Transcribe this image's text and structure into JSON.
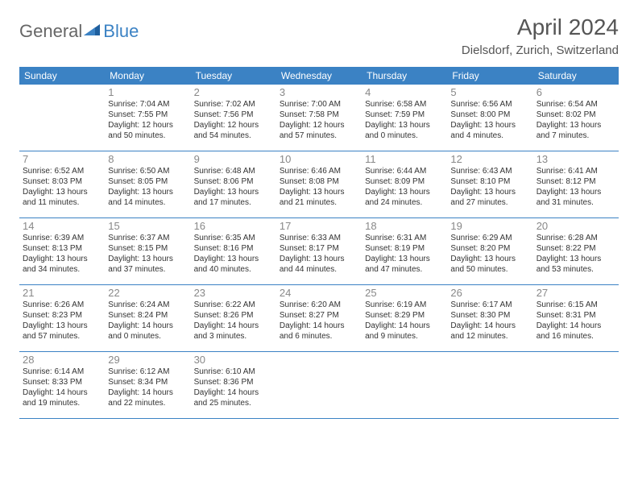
{
  "brand": {
    "first": "General",
    "second": "Blue"
  },
  "title": "April 2024",
  "location": "Dielsdorf, Zurich, Switzerland",
  "colors": {
    "accent": "#3b82c4",
    "header_text": "#ffffff",
    "title_text": "#555555",
    "body_text": "#333333",
    "daynum_text": "#888888",
    "logo_gray": "#666666",
    "background": "#ffffff"
  },
  "fonts": {
    "title_size": 28,
    "location_size": 15,
    "header_size": 12,
    "daynum_size": 13,
    "info_size": 10
  },
  "day_names": [
    "Sunday",
    "Monday",
    "Tuesday",
    "Wednesday",
    "Thursday",
    "Friday",
    "Saturday"
  ],
  "weeks": [
    [
      null,
      {
        "n": "1",
        "sunrise": "Sunrise: 7:04 AM",
        "sunset": "Sunset: 7:55 PM",
        "d1": "Daylight: 12 hours",
        "d2": "and 50 minutes."
      },
      {
        "n": "2",
        "sunrise": "Sunrise: 7:02 AM",
        "sunset": "Sunset: 7:56 PM",
        "d1": "Daylight: 12 hours",
        "d2": "and 54 minutes."
      },
      {
        "n": "3",
        "sunrise": "Sunrise: 7:00 AM",
        "sunset": "Sunset: 7:58 PM",
        "d1": "Daylight: 12 hours",
        "d2": "and 57 minutes."
      },
      {
        "n": "4",
        "sunrise": "Sunrise: 6:58 AM",
        "sunset": "Sunset: 7:59 PM",
        "d1": "Daylight: 13 hours",
        "d2": "and 0 minutes."
      },
      {
        "n": "5",
        "sunrise": "Sunrise: 6:56 AM",
        "sunset": "Sunset: 8:00 PM",
        "d1": "Daylight: 13 hours",
        "d2": "and 4 minutes."
      },
      {
        "n": "6",
        "sunrise": "Sunrise: 6:54 AM",
        "sunset": "Sunset: 8:02 PM",
        "d1": "Daylight: 13 hours",
        "d2": "and 7 minutes."
      }
    ],
    [
      {
        "n": "7",
        "sunrise": "Sunrise: 6:52 AM",
        "sunset": "Sunset: 8:03 PM",
        "d1": "Daylight: 13 hours",
        "d2": "and 11 minutes."
      },
      {
        "n": "8",
        "sunrise": "Sunrise: 6:50 AM",
        "sunset": "Sunset: 8:05 PM",
        "d1": "Daylight: 13 hours",
        "d2": "and 14 minutes."
      },
      {
        "n": "9",
        "sunrise": "Sunrise: 6:48 AM",
        "sunset": "Sunset: 8:06 PM",
        "d1": "Daylight: 13 hours",
        "d2": "and 17 minutes."
      },
      {
        "n": "10",
        "sunrise": "Sunrise: 6:46 AM",
        "sunset": "Sunset: 8:08 PM",
        "d1": "Daylight: 13 hours",
        "d2": "and 21 minutes."
      },
      {
        "n": "11",
        "sunrise": "Sunrise: 6:44 AM",
        "sunset": "Sunset: 8:09 PM",
        "d1": "Daylight: 13 hours",
        "d2": "and 24 minutes."
      },
      {
        "n": "12",
        "sunrise": "Sunrise: 6:43 AM",
        "sunset": "Sunset: 8:10 PM",
        "d1": "Daylight: 13 hours",
        "d2": "and 27 minutes."
      },
      {
        "n": "13",
        "sunrise": "Sunrise: 6:41 AM",
        "sunset": "Sunset: 8:12 PM",
        "d1": "Daylight: 13 hours",
        "d2": "and 31 minutes."
      }
    ],
    [
      {
        "n": "14",
        "sunrise": "Sunrise: 6:39 AM",
        "sunset": "Sunset: 8:13 PM",
        "d1": "Daylight: 13 hours",
        "d2": "and 34 minutes."
      },
      {
        "n": "15",
        "sunrise": "Sunrise: 6:37 AM",
        "sunset": "Sunset: 8:15 PM",
        "d1": "Daylight: 13 hours",
        "d2": "and 37 minutes."
      },
      {
        "n": "16",
        "sunrise": "Sunrise: 6:35 AM",
        "sunset": "Sunset: 8:16 PM",
        "d1": "Daylight: 13 hours",
        "d2": "and 40 minutes."
      },
      {
        "n": "17",
        "sunrise": "Sunrise: 6:33 AM",
        "sunset": "Sunset: 8:17 PM",
        "d1": "Daylight: 13 hours",
        "d2": "and 44 minutes."
      },
      {
        "n": "18",
        "sunrise": "Sunrise: 6:31 AM",
        "sunset": "Sunset: 8:19 PM",
        "d1": "Daylight: 13 hours",
        "d2": "and 47 minutes."
      },
      {
        "n": "19",
        "sunrise": "Sunrise: 6:29 AM",
        "sunset": "Sunset: 8:20 PM",
        "d1": "Daylight: 13 hours",
        "d2": "and 50 minutes."
      },
      {
        "n": "20",
        "sunrise": "Sunrise: 6:28 AM",
        "sunset": "Sunset: 8:22 PM",
        "d1": "Daylight: 13 hours",
        "d2": "and 53 minutes."
      }
    ],
    [
      {
        "n": "21",
        "sunrise": "Sunrise: 6:26 AM",
        "sunset": "Sunset: 8:23 PM",
        "d1": "Daylight: 13 hours",
        "d2": "and 57 minutes."
      },
      {
        "n": "22",
        "sunrise": "Sunrise: 6:24 AM",
        "sunset": "Sunset: 8:24 PM",
        "d1": "Daylight: 14 hours",
        "d2": "and 0 minutes."
      },
      {
        "n": "23",
        "sunrise": "Sunrise: 6:22 AM",
        "sunset": "Sunset: 8:26 PM",
        "d1": "Daylight: 14 hours",
        "d2": "and 3 minutes."
      },
      {
        "n": "24",
        "sunrise": "Sunrise: 6:20 AM",
        "sunset": "Sunset: 8:27 PM",
        "d1": "Daylight: 14 hours",
        "d2": "and 6 minutes."
      },
      {
        "n": "25",
        "sunrise": "Sunrise: 6:19 AM",
        "sunset": "Sunset: 8:29 PM",
        "d1": "Daylight: 14 hours",
        "d2": "and 9 minutes."
      },
      {
        "n": "26",
        "sunrise": "Sunrise: 6:17 AM",
        "sunset": "Sunset: 8:30 PM",
        "d1": "Daylight: 14 hours",
        "d2": "and 12 minutes."
      },
      {
        "n": "27",
        "sunrise": "Sunrise: 6:15 AM",
        "sunset": "Sunset: 8:31 PM",
        "d1": "Daylight: 14 hours",
        "d2": "and 16 minutes."
      }
    ],
    [
      {
        "n": "28",
        "sunrise": "Sunrise: 6:14 AM",
        "sunset": "Sunset: 8:33 PM",
        "d1": "Daylight: 14 hours",
        "d2": "and 19 minutes."
      },
      {
        "n": "29",
        "sunrise": "Sunrise: 6:12 AM",
        "sunset": "Sunset: 8:34 PM",
        "d1": "Daylight: 14 hours",
        "d2": "and 22 minutes."
      },
      {
        "n": "30",
        "sunrise": "Sunrise: 6:10 AM",
        "sunset": "Sunset: 8:36 PM",
        "d1": "Daylight: 14 hours",
        "d2": "and 25 minutes."
      },
      null,
      null,
      null,
      null
    ]
  ]
}
